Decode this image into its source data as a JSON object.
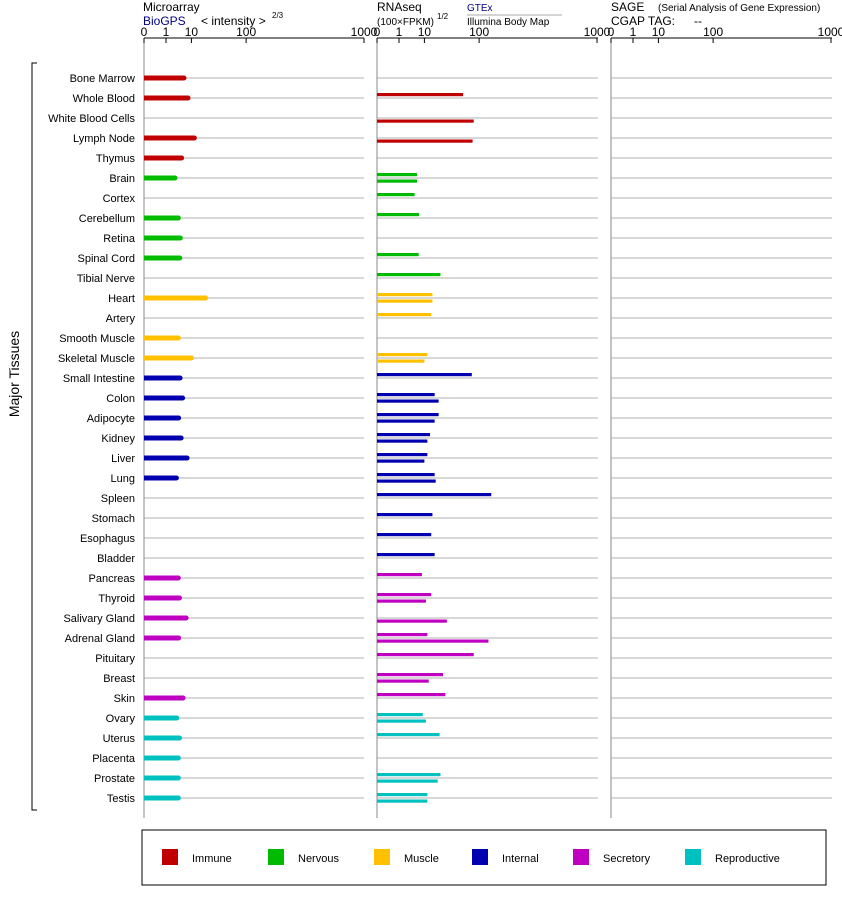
{
  "colors": {
    "immune": "#c00000",
    "nervous": "#00bb00",
    "muscle": "#ffc000",
    "internal": "#0000b0",
    "secretory": "#c000c0",
    "reproductive": "#00c0c0",
    "bluetext": "#000080",
    "gridline": "#999999"
  },
  "header": {
    "microarray": {
      "title": "Microarray",
      "source": "BioGPS",
      "scale_label": "< intensity >",
      "scale_exponent": "2/3"
    },
    "rnaseq": {
      "title": "RNAseq",
      "scale_label": "(100×FPKM)",
      "scale_exponent": "1/2",
      "source1": "GTEx",
      "source2": "Illumina Body Map"
    },
    "sage": {
      "title": "SAGE",
      "subtitle": "(Serial Analysis of Gene Expression)",
      "tag_label": "CGAP TAG:",
      "tag_value": "--"
    }
  },
  "y_axis_label": "Major Tissues",
  "chart_data": {
    "type": "bar",
    "orientation": "horizontal",
    "x_tick_labels": [
      "0",
      "1",
      "10",
      "100",
      "1000"
    ],
    "tick_values": [
      0,
      1,
      10,
      100,
      1000
    ],
    "xlim": [
      0,
      1000
    ],
    "groups": [
      "immune",
      "nervous",
      "muscle",
      "internal",
      "secretory",
      "reproductive"
    ],
    "tissues": [
      {
        "name": "Bone Marrow",
        "group": "immune",
        "microarray": 6,
        "gtex": null,
        "ibm": null
      },
      {
        "name": "Whole Blood",
        "group": "immune",
        "microarray": 8,
        "gtex": 60,
        "ibm": null
      },
      {
        "name": "White Blood Cells",
        "group": "immune",
        "microarray": null,
        "gtex": null,
        "ibm": 85
      },
      {
        "name": "Lymph Node",
        "group": "immune",
        "microarray": 12,
        "gtex": null,
        "ibm": 82
      },
      {
        "name": "Thymus",
        "group": "immune",
        "microarray": 5,
        "gtex": null,
        "ibm": null
      },
      {
        "name": "Brain",
        "group": "nervous",
        "microarray": 2.8,
        "gtex": 6,
        "ibm": 6
      },
      {
        "name": "Cortex",
        "group": "nervous",
        "microarray": null,
        "gtex": 5,
        "ibm": null
      },
      {
        "name": "Cerebellum",
        "group": "nervous",
        "microarray": 3.8,
        "gtex": 7,
        "ibm": null
      },
      {
        "name": "Retina",
        "group": "nervous",
        "microarray": 4.5,
        "gtex": null,
        "ibm": null
      },
      {
        "name": "Spinal Cord",
        "group": "nervous",
        "microarray": 4.3,
        "gtex": 6.8,
        "ibm": null
      },
      {
        "name": "Tibial Nerve",
        "group": "nervous",
        "microarray": null,
        "gtex": 24,
        "ibm": null
      },
      {
        "name": "Heart",
        "group": "muscle",
        "microarray": 22,
        "gtex": 16,
        "ibm": 16
      },
      {
        "name": "Artery",
        "group": "muscle",
        "microarray": null,
        "gtex": 15,
        "ibm": null
      },
      {
        "name": "Smooth Muscle",
        "group": "muscle",
        "microarray": 3.8,
        "gtex": null,
        "ibm": null
      },
      {
        "name": "Skeletal Muscle",
        "group": "muscle",
        "microarray": 10,
        "gtex": 12,
        "ibm": 10
      },
      {
        "name": "Small Intestine",
        "group": "internal",
        "microarray": 4.4,
        "gtex": 80,
        "ibm": null
      },
      {
        "name": "Colon",
        "group": "internal",
        "microarray": 5.4,
        "gtex": 18,
        "ibm": 22
      },
      {
        "name": "Adipocyte",
        "group": "internal",
        "microarray": 3.9,
        "gtex": 22,
        "ibm": 18
      },
      {
        "name": "Kidney",
        "group": "internal",
        "microarray": 4.8,
        "gtex": 14,
        "ibm": 12
      },
      {
        "name": "Liver",
        "group": "internal",
        "microarray": 7.5,
        "gtex": 12,
        "ibm": 10
      },
      {
        "name": "Lung",
        "group": "internal",
        "microarray": 3.2,
        "gtex": 18,
        "ibm": 19
      },
      {
        "name": "Spleen",
        "group": "internal",
        "microarray": null,
        "gtex": 140,
        "ibm": null
      },
      {
        "name": "Stomach",
        "group": "internal",
        "microarray": null,
        "gtex": 16,
        "ibm": null
      },
      {
        "name": "Esophagus",
        "group": "internal",
        "microarray": null,
        "gtex": 15,
        "ibm": null
      },
      {
        "name": "Bladder",
        "group": "internal",
        "microarray": null,
        "gtex": 18,
        "ibm": null
      },
      {
        "name": "Pancreas",
        "group": "secretory",
        "microarray": 3.8,
        "gtex": 8.5,
        "ibm": null
      },
      {
        "name": "Thyroid",
        "group": "secretory",
        "microarray": 4.2,
        "gtex": 15,
        "ibm": 11
      },
      {
        "name": "Salivary Gland",
        "group": "secretory",
        "microarray": 7,
        "gtex": null,
        "ibm": 32
      },
      {
        "name": "Adrenal Gland",
        "group": "secretory",
        "microarray": 3.9,
        "gtex": 12,
        "ibm": 130
      },
      {
        "name": "Pituitary",
        "group": "secretory",
        "microarray": null,
        "gtex": 85,
        "ibm": null
      },
      {
        "name": "Breast",
        "group": "secretory",
        "microarray": null,
        "gtex": 27,
        "ibm": 13
      },
      {
        "name": "Skin",
        "group": "secretory",
        "microarray": 5.6,
        "gtex": 30,
        "ibm": null
      },
      {
        "name": "Ovary",
        "group": "reproductive",
        "microarray": 3.3,
        "gtex": 9,
        "ibm": 11
      },
      {
        "name": "Uterus",
        "group": "reproductive",
        "microarray": 4.2,
        "gtex": 23,
        "ibm": null
      },
      {
        "name": "Placenta",
        "group": "reproductive",
        "microarray": 3.8,
        "gtex": null,
        "ibm": null
      },
      {
        "name": "Prostate",
        "group": "reproductive",
        "microarray": 3.8,
        "gtex": 24,
        "ibm": 21
      },
      {
        "name": "Testis",
        "group": "reproductive",
        "microarray": 3.8,
        "gtex": 12,
        "ibm": 12
      }
    ]
  },
  "legend": [
    {
      "key": "immune",
      "label": "Immune"
    },
    {
      "key": "nervous",
      "label": "Nervous"
    },
    {
      "key": "muscle",
      "label": "Muscle"
    },
    {
      "key": "internal",
      "label": "Internal"
    },
    {
      "key": "secretory",
      "label": "Secretory"
    },
    {
      "key": "reproductive",
      "label": "Reproductive"
    }
  ]
}
